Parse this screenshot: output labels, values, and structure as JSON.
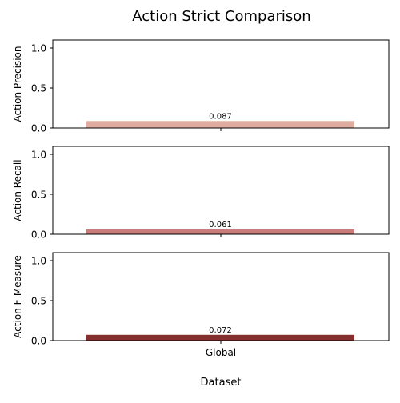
{
  "chart_data": {
    "type": "bar",
    "title": "Action Strict Comparison",
    "xlabel": "Dataset",
    "categories": [
      "Global"
    ],
    "panels": [
      {
        "ylabel": "Action Precision",
        "values": [
          0.087
        ],
        "value_labels": [
          "0.087"
        ],
        "ylim": [
          0,
          1.1
        ],
        "yticks": [
          0.0,
          0.5,
          1.0
        ],
        "ytick_labels": [
          "0.0",
          "0.5",
          "1.0"
        ],
        "color": "#e0aca0"
      },
      {
        "ylabel": "Action Recall",
        "values": [
          0.061
        ],
        "value_labels": [
          "0.061"
        ],
        "ylim": [
          0,
          1.1
        ],
        "yticks": [
          0.0,
          0.5,
          1.0
        ],
        "ytick_labels": [
          "0.0",
          "0.5",
          "1.0"
        ],
        "color": "#c97c79"
      },
      {
        "ylabel": "Action F-Measure",
        "values": [
          0.072
        ],
        "value_labels": [
          "0.072"
        ],
        "ylim": [
          0,
          1.1
        ],
        "yticks": [
          0.0,
          0.5,
          1.0
        ],
        "ytick_labels": [
          "0.0",
          "0.5",
          "1.0"
        ],
        "color": "#872f2c"
      }
    ],
    "grid": false,
    "legend": "none"
  }
}
